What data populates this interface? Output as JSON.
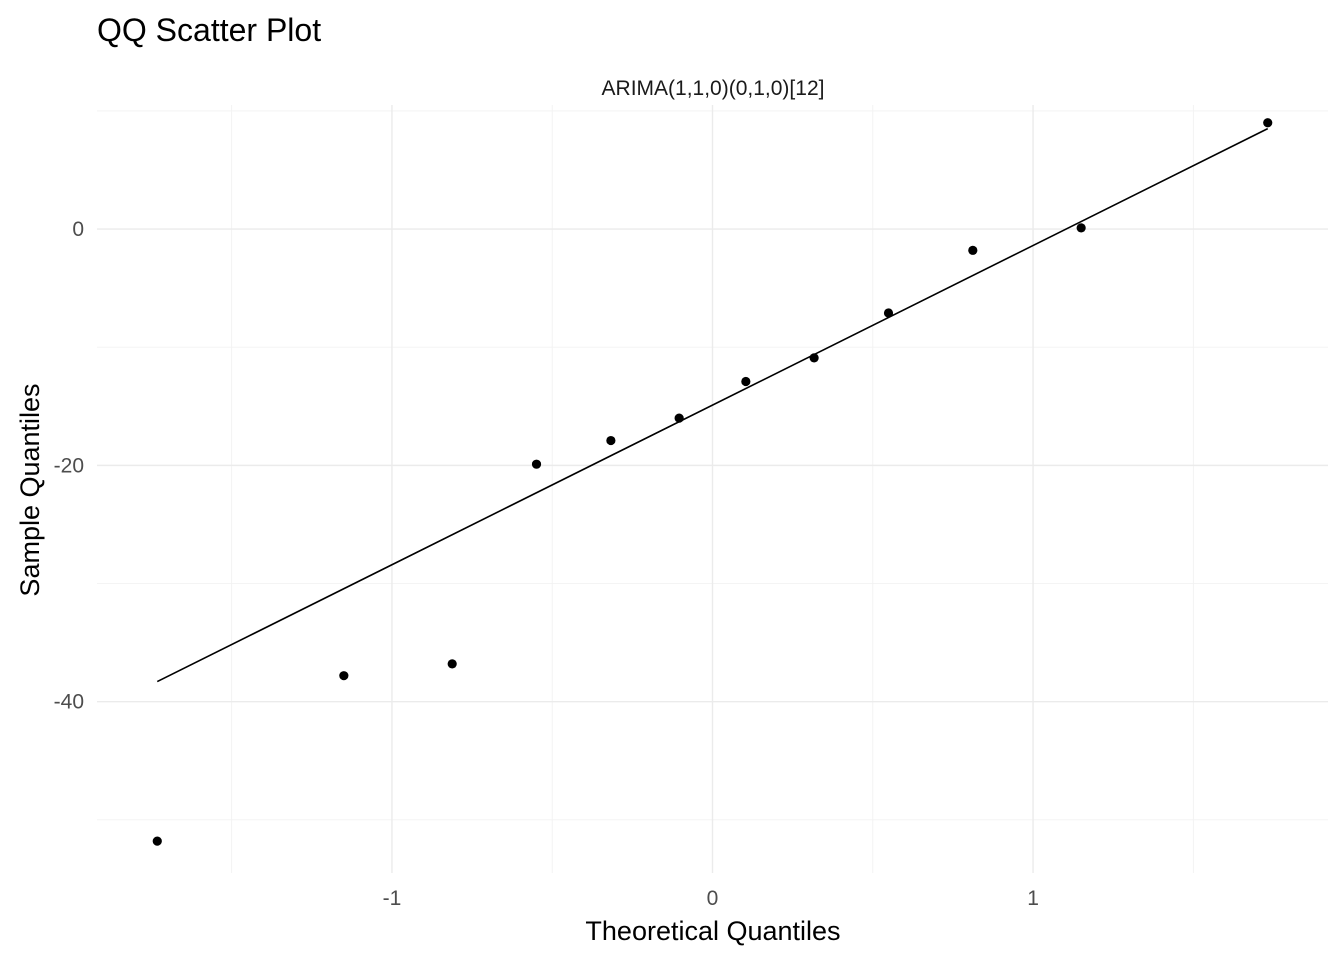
{
  "chart_data": {
    "type": "scatter",
    "title": "QQ Scatter Plot",
    "facet_label": "ARIMA(1,1,0)(0,1,0)[12]",
    "xlabel": "Theoretical Quantiles",
    "ylabel": "Sample Quantiles",
    "xlim": [
      -1.92,
      1.92
    ],
    "ylim": [
      -54.5,
      10.5
    ],
    "x_ticks": [
      -1,
      0,
      1
    ],
    "x_tick_labels": [
      "-1",
      "0",
      "1"
    ],
    "x_minor_ticks": [
      -1.5,
      -0.5,
      0.5,
      1.5
    ],
    "y_ticks": [
      -40,
      -20,
      0
    ],
    "y_tick_labels": [
      "-40",
      "-20",
      "0"
    ],
    "y_minor_ticks": [
      -50,
      -30,
      -10,
      10
    ],
    "grid": true,
    "points": [
      {
        "x": -1.732,
        "y": -51.8
      },
      {
        "x": -1.15,
        "y": -37.8
      },
      {
        "x": -0.812,
        "y": -36.8
      },
      {
        "x": -0.549,
        "y": -19.9
      },
      {
        "x": -0.317,
        "y": -17.9
      },
      {
        "x": -0.104,
        "y": -16.0
      },
      {
        "x": 0.104,
        "y": -12.9
      },
      {
        "x": 0.317,
        "y": -10.9
      },
      {
        "x": 0.549,
        "y": -7.1
      },
      {
        "x": 0.812,
        "y": -1.8
      },
      {
        "x": 1.15,
        "y": 0.1
      },
      {
        "x": 1.732,
        "y": 9.0
      }
    ],
    "reference_line": {
      "x": [
        -1.732,
        1.732
      ],
      "y": [
        -38.3,
        8.5
      ]
    }
  }
}
